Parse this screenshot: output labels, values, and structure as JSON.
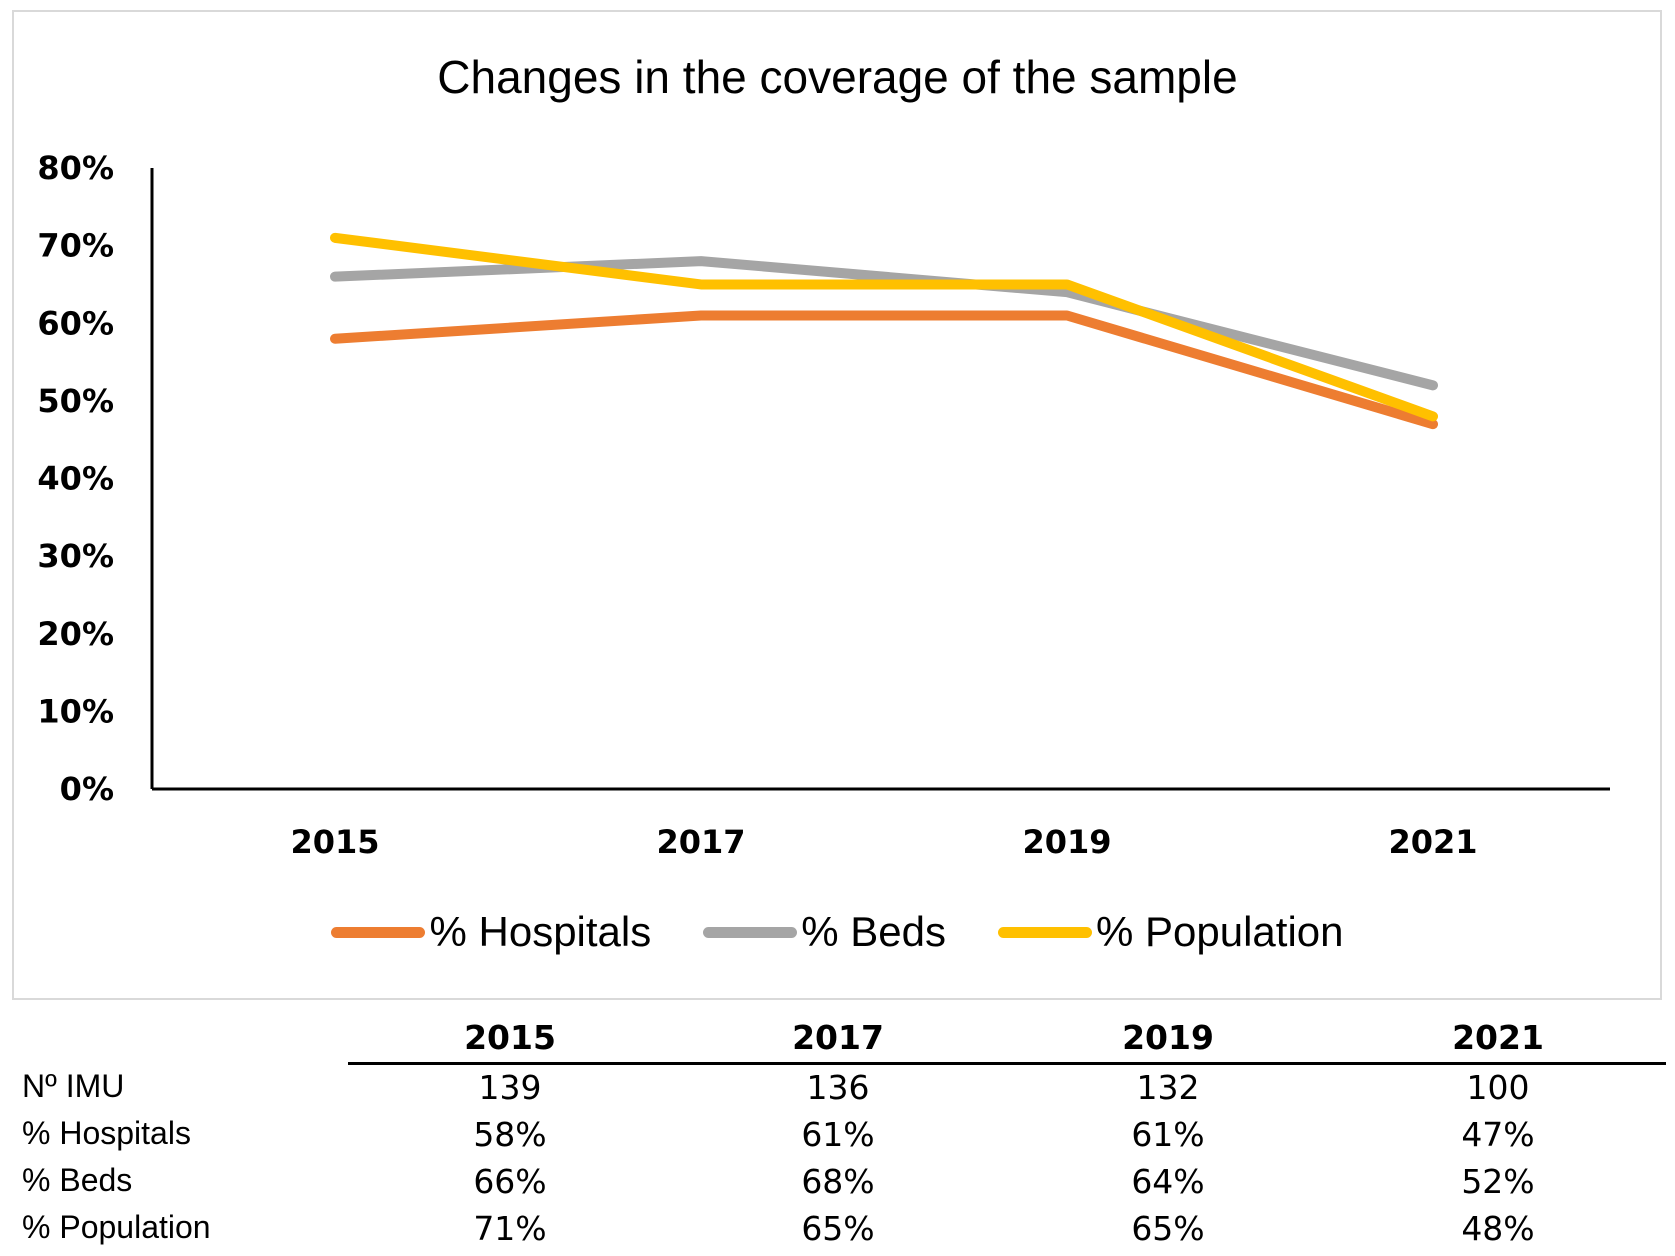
{
  "chart_data": {
    "type": "line",
    "title": "Changes in the coverage of the sample",
    "categories": [
      "2015",
      "2017",
      "2019",
      "2021"
    ],
    "ylim": [
      0,
      80
    ],
    "yticks": [
      0,
      10,
      20,
      30,
      40,
      50,
      60,
      70,
      80
    ],
    "ytick_labels": [
      "0%",
      "10%",
      "20%",
      "30%",
      "40%",
      "50%",
      "60%",
      "70%",
      "80%"
    ],
    "xlabel": "",
    "ylabel": "",
    "grid": false,
    "legend_position": "bottom",
    "series": [
      {
        "name": "% Hospitals",
        "values": [
          58,
          61,
          61,
          47
        ],
        "color": "#ED7D31"
      },
      {
        "name": "% Beds",
        "values": [
          66,
          68,
          64,
          52
        ],
        "color": "#A5A5A5"
      },
      {
        "name": "% Population",
        "values": [
          71,
          65,
          65,
          48
        ],
        "color": "#FFC000"
      }
    ]
  },
  "table": {
    "headers": [
      "2015",
      "2017",
      "2019",
      "2021"
    ],
    "rows": [
      {
        "label": "Nº IMU",
        "cells": [
          "139",
          "136",
          "132",
          "100"
        ]
      },
      {
        "label": "% Hospitals",
        "cells": [
          "58%",
          "61%",
          "61%",
          "47%"
        ]
      },
      {
        "label": "% Beds",
        "cells": [
          "66%",
          "68%",
          "64%",
          "52%"
        ]
      },
      {
        "label": "% Population",
        "cells": [
          "71%",
          "65%",
          "65%",
          "48%"
        ]
      }
    ]
  }
}
